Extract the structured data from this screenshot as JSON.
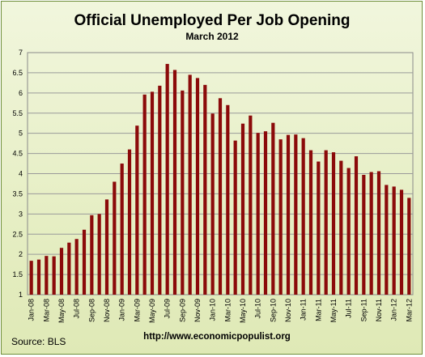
{
  "chart_data": {
    "type": "bar",
    "title": "Official Unemployed Per Job Opening",
    "subtitle": "March 2012",
    "xlabel": "",
    "ylabel": "",
    "ylim": [
      1,
      7
    ],
    "yticks": [
      "1",
      "1.5",
      "2",
      "2.5",
      "3",
      "3.5",
      "4",
      "4.5",
      "5",
      "5.5",
      "6",
      "6.5",
      "7"
    ],
    "grid": true,
    "legend": "none",
    "categories": [
      "Jan-08",
      "Feb-08",
      "Mar-08",
      "Apr-08",
      "May-08",
      "Jun-08",
      "Jul-08",
      "Aug-08",
      "Sep-08",
      "Oct-08",
      "Nov-08",
      "Dec-08",
      "Jan-09",
      "Feb-09",
      "Mar-09",
      "Apr-09",
      "May-09",
      "Jun-09",
      "Jul-09",
      "Aug-09",
      "Sep-09",
      "Oct-09",
      "Nov-09",
      "Dec-09",
      "Jan-10",
      "Feb-10",
      "Mar-10",
      "Apr-10",
      "May-10",
      "Jun-10",
      "Jul-10",
      "Aug-10",
      "Sep-10",
      "Oct-10",
      "Nov-10",
      "Dec-10",
      "Jan-11",
      "Feb-11",
      "Mar-11",
      "Apr-11",
      "May-11",
      "Jun-11",
      "Jul-11",
      "Aug-11",
      "Sep-11",
      "Oct-11",
      "Nov-11",
      "Dec-11",
      "Jan-12",
      "Feb-12",
      "Mar-12"
    ],
    "tick_labels": [
      "Jan-08",
      "Mar-08",
      "May-08",
      "Jul-08",
      "Sep-08",
      "Nov-08",
      "Jan-09",
      "Mar-09",
      "May-09",
      "Jul-09",
      "Sep-09",
      "Nov-09",
      "Jan-10",
      "Mar-10",
      "May-10",
      "Jul-10",
      "Sep-10",
      "Nov-10",
      "Jan-11",
      "Mar-11",
      "May-11",
      "Jul-11",
      "Sep-11",
      "Nov-11",
      "Jan-12",
      "Mar-12"
    ],
    "values": [
      1.84,
      1.87,
      1.96,
      1.95,
      2.16,
      2.29,
      2.38,
      2.61,
      2.97,
      3.0,
      3.36,
      3.8,
      4.25,
      4.6,
      5.19,
      5.96,
      6.03,
      6.18,
      6.72,
      6.57,
      6.06,
      6.45,
      6.37,
      6.2,
      5.49,
      5.87,
      5.7,
      4.82,
      5.24,
      5.44,
      5.01,
      5.05,
      5.26,
      4.85,
      4.96,
      4.97,
      4.88,
      4.58,
      4.3,
      4.58,
      4.53,
      4.32,
      4.14,
      4.43,
      3.97,
      4.04,
      4.06,
      3.72,
      3.68,
      3.6,
      3.4
    ],
    "bar_color": "#8b0a0a"
  },
  "footer": {
    "source": "Source:  BLS",
    "url": "http://www.economicpopulist.org"
  }
}
